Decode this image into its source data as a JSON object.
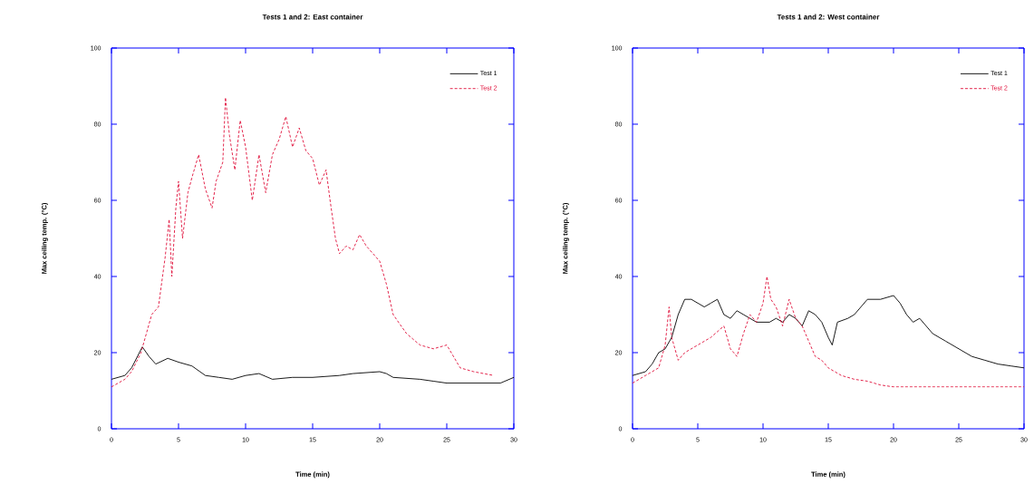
{
  "chart_data": [
    {
      "type": "line",
      "title": "Tests 1 and 2: East container",
      "xlabel": "Time (min)",
      "ylabel": "Max ceiling temp. (°C)",
      "xlim": [
        0,
        30
      ],
      "ylim": [
        0,
        100
      ],
      "xticks": [
        0,
        5,
        10,
        15,
        20,
        25,
        30
      ],
      "yticks": [
        0,
        20,
        40,
        60,
        80,
        100
      ],
      "legend": "top right",
      "series": [
        {
          "name": "Test 1",
          "color": "#000000",
          "line_style": "solid",
          "x": [
            0,
            1,
            1.5,
            2.3,
            2.8,
            3.3,
            4.2,
            5,
            6,
            7,
            8,
            9,
            10,
            11,
            12,
            13.5,
            15,
            17,
            18,
            20,
            20.5,
            21,
            23,
            24,
            25,
            29,
            30
          ],
          "values": [
            13,
            14,
            16,
            21.5,
            19,
            17,
            18.5,
            17.5,
            16.5,
            14,
            13.5,
            13,
            14,
            14.5,
            13,
            13.5,
            13.5,
            14,
            14.5,
            15,
            14.5,
            13.5,
            13,
            12.5,
            12,
            12,
            13.5
          ]
        },
        {
          "name": "Test 2",
          "color": "#e0103a",
          "line_style": "dashed",
          "x": [
            0,
            1,
            1.5,
            2.2,
            3,
            3.5,
            4,
            4.3,
            4.5,
            4.8,
            5,
            5.3,
            5.7,
            6,
            6.5,
            7,
            7.5,
            7.8,
            8.3,
            8.5,
            8.8,
            9.2,
            9.6,
            10,
            10.5,
            11,
            11.5,
            12,
            12.5,
            13,
            13.5,
            14,
            14.5,
            15,
            15.5,
            16,
            16.3,
            16.7,
            17,
            17.5,
            18,
            18.5,
            19,
            19.5,
            20,
            20.5,
            21,
            22,
            23,
            24,
            25,
            26,
            27,
            28.5
          ],
          "values": [
            11,
            13,
            15,
            20,
            30,
            32,
            45,
            55,
            40,
            58,
            65,
            50,
            62,
            66,
            72,
            63,
            58,
            65,
            70,
            87,
            77,
            68,
            81,
            74,
            60,
            72,
            62,
            72,
            76,
            82,
            74,
            79,
            73,
            71,
            64,
            68,
            60,
            50,
            46,
            48,
            47,
            51,
            48,
            46,
            44,
            38,
            30,
            25,
            22,
            21,
            22,
            16,
            15,
            14
          ]
        }
      ]
    },
    {
      "type": "line",
      "title": "Tests 1 and 2: West container",
      "xlabel": "Time (min)",
      "ylabel": "Max ceiling temp. (°C)",
      "xlim": [
        0,
        30
      ],
      "ylim": [
        0,
        100
      ],
      "xticks": [
        0,
        5,
        10,
        15,
        20,
        25,
        30
      ],
      "yticks": [
        0,
        20,
        40,
        60,
        80,
        100
      ],
      "legend": "top right",
      "series": [
        {
          "name": "Test 1",
          "color": "#000000",
          "line_style": "solid",
          "x": [
            0,
            1,
            1.5,
            2,
            2.5,
            3,
            3.5,
            4,
            4.5,
            5,
            5.5,
            6,
            6.5,
            7,
            7.5,
            8,
            8.5,
            9,
            9.5,
            10,
            10.5,
            11,
            11.5,
            12,
            12.5,
            13,
            13.5,
            14,
            14.5,
            15,
            15.3,
            15.7,
            16.5,
            17,
            18,
            19,
            20,
            20.5,
            21,
            21.5,
            22,
            23,
            24,
            25,
            26,
            27,
            28,
            29,
            30
          ],
          "values": [
            14,
            15,
            17,
            20,
            21,
            24,
            30,
            34,
            34,
            33,
            32,
            33,
            34,
            30,
            29,
            31,
            30,
            29,
            28,
            28,
            28,
            29,
            28,
            30,
            29,
            27,
            31,
            30,
            28,
            24,
            22,
            28,
            29,
            30,
            34,
            34,
            35,
            33,
            30,
            28,
            29,
            25,
            23,
            21,
            19,
            18,
            17,
            16.5,
            16
          ]
        },
        {
          "name": "Test 2",
          "color": "#e0103a",
          "line_style": "dashed",
          "x": [
            0,
            1,
            2,
            2.5,
            2.8,
            3,
            3.5,
            4,
            5,
            6,
            7,
            7.5,
            8,
            8.5,
            9,
            9.5,
            10,
            10.3,
            10.6,
            11,
            11.5,
            12,
            12.5,
            13,
            13.5,
            14,
            14.5,
            15,
            16,
            17,
            18,
            19,
            20,
            22,
            30
          ],
          "values": [
            12,
            14,
            16,
            22,
            32,
            24,
            18,
            20,
            22,
            24,
            27,
            21,
            19,
            25,
            30,
            28,
            33,
            40,
            34,
            32,
            27,
            34,
            29,
            27,
            23,
            19,
            18,
            16,
            14,
            13,
            12.5,
            11.5,
            11,
            11,
            11
          ]
        }
      ]
    }
  ]
}
